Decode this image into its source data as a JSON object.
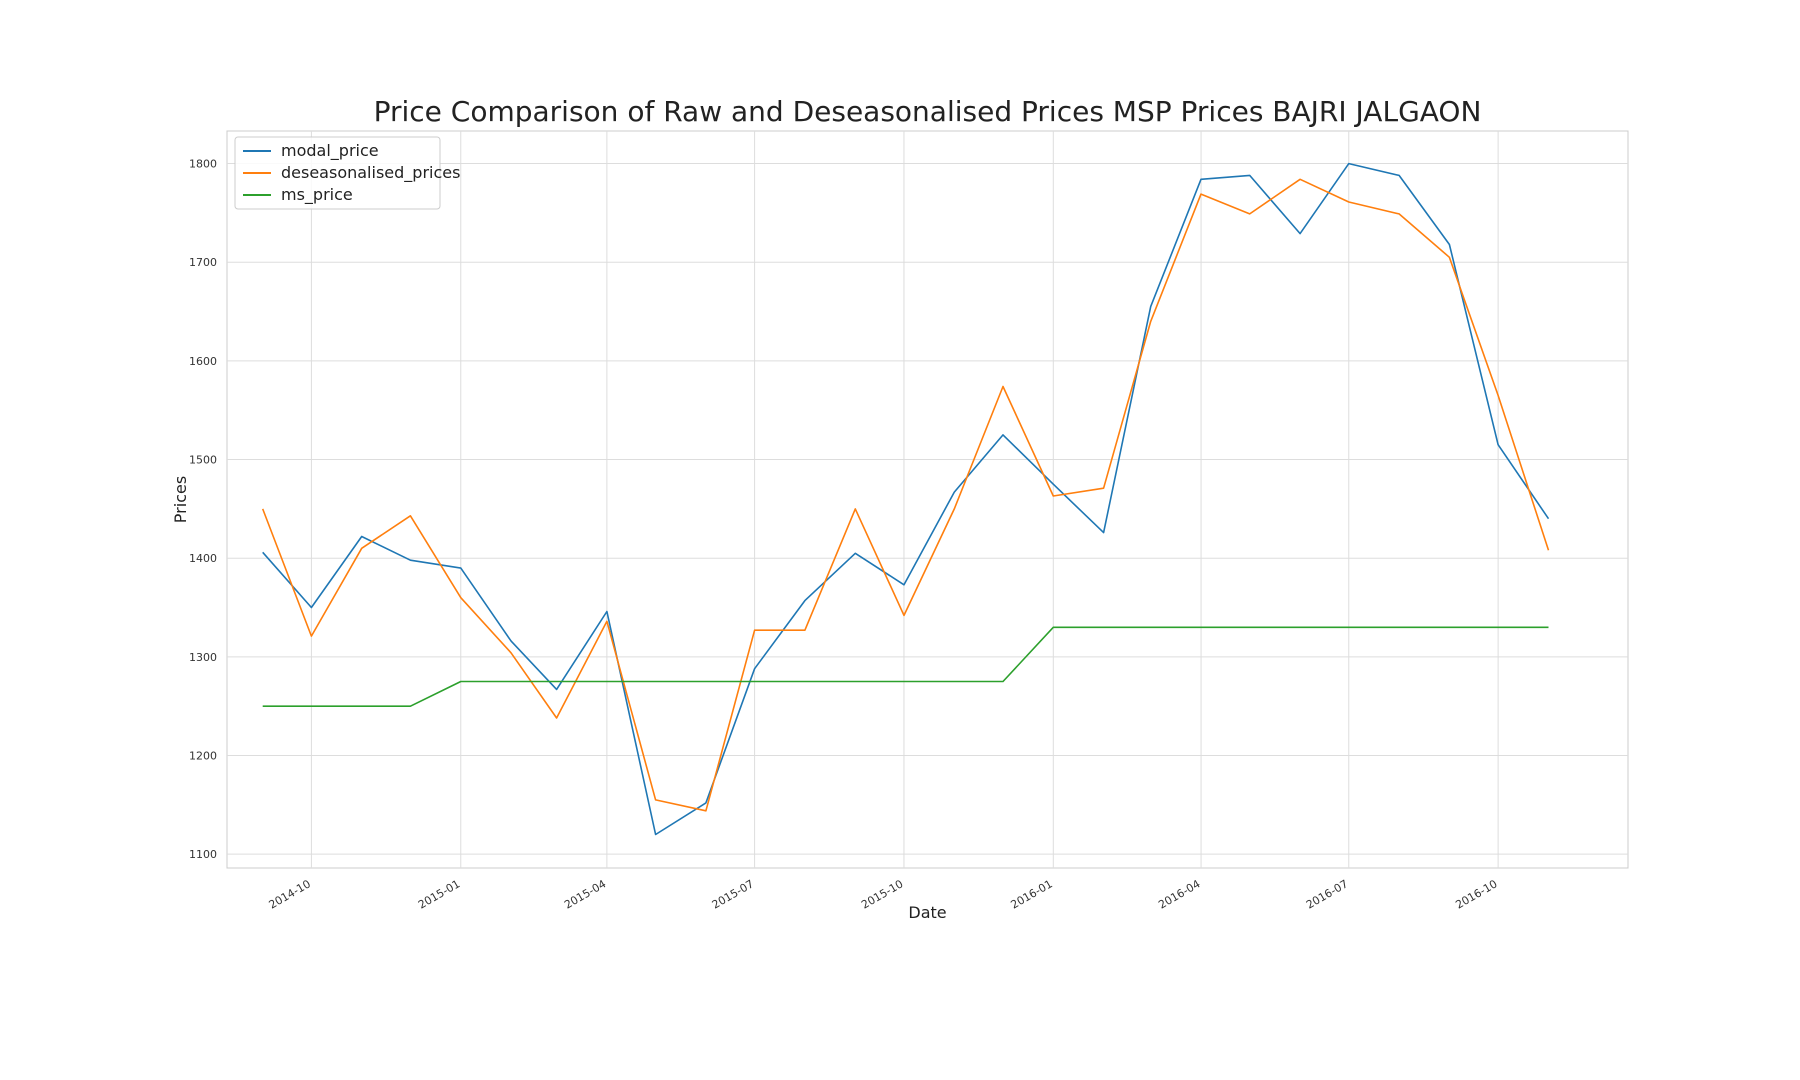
{
  "chart_data": {
    "type": "line",
    "title": "Price Comparison of Raw and Deseasonalised Prices MSP Prices BAJRI JALGAON",
    "xlabel": "Date",
    "ylabel": "Prices",
    "xlim": [
      "2014-08-10",
      "2016-12-20"
    ],
    "ylim": [
      1086,
      1833
    ],
    "yticks": [
      1100,
      1200,
      1300,
      1400,
      1500,
      1600,
      1700,
      1800
    ],
    "xticks": [
      "2014-10",
      "2015-01",
      "2015-04",
      "2015-07",
      "2015-10",
      "2016-01",
      "2016-04",
      "2016-07",
      "2016-10"
    ],
    "grid": true,
    "legend_position": "top-left",
    "x": [
      "2014-09-01",
      "2014-10-01",
      "2014-11-01",
      "2014-12-01",
      "2015-01-01",
      "2015-02-01",
      "2015-03-01",
      "2015-04-01",
      "2015-05-01",
      "2015-06-01",
      "2015-07-01",
      "2015-08-01",
      "2015-09-01",
      "2015-10-01",
      "2015-11-01",
      "2015-12-01",
      "2016-01-01",
      "2016-02-01",
      "2016-03-01",
      "2016-04-01",
      "2016-05-01",
      "2016-06-01",
      "2016-07-01",
      "2016-08-01",
      "2016-09-01",
      "2016-10-01",
      "2016-11-01"
    ],
    "series": [
      {
        "name": "modal_price",
        "color": "#1f77b4",
        "values": [
          1406,
          1350,
          1422,
          1398,
          1390,
          1316,
          1267,
          1346,
          1120,
          1152,
          1288,
          1357,
          1405,
          1373,
          1467,
          1525,
          1475,
          1426,
          1655,
          1784,
          1788,
          1729,
          1800,
          1788,
          1718,
          1515,
          1440
        ]
      },
      {
        "name": "deseasonalised_prices",
        "color": "#ff7f0e",
        "values": [
          1450,
          1321,
          1410,
          1443,
          1360,
          1304,
          1238,
          1336,
          1155,
          1144,
          1327,
          1327,
          1450,
          1342,
          1450,
          1574,
          1463,
          1471,
          1640,
          1769,
          1749,
          1784,
          1761,
          1749,
          1705,
          1565,
          1408
        ]
      },
      {
        "name": "ms_price",
        "color": "#2ca02c",
        "values": [
          1250,
          1250,
          1250,
          1250,
          1275,
          1275,
          1275,
          1275,
          1275,
          1275,
          1275,
          1275,
          1275,
          1275,
          1275,
          1275,
          1330,
          1330,
          1330,
          1330,
          1330,
          1330,
          1330,
          1330,
          1330,
          1330,
          1330
        ]
      }
    ]
  }
}
